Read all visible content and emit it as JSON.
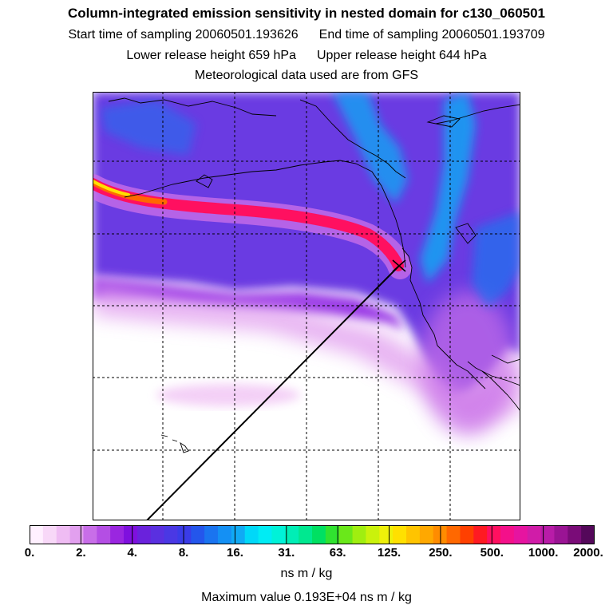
{
  "header": {
    "title": "Column-integrated emission sensitivity in nested domain for c130_060501",
    "start_label": "Start time of sampling 20060501.193626",
    "end_label": "End time of sampling 20060501.193709",
    "lower_label": "Lower release height  659 hPa",
    "upper_label": "Upper release height  644 hPa",
    "met_label": "Meteorological data used are from GFS"
  },
  "colorbar": {
    "tick_labels": [
      "0.",
      "2.",
      "4.",
      "8.",
      "16.",
      "31.",
      "63.",
      "125.",
      "250.",
      "500.",
      "1000.",
      "2000."
    ],
    "colors": [
      "#fff0ff",
      "#f8d8f8",
      "#efbcf3",
      "#e2a0ef",
      "#c86ee8",
      "#b44ee4",
      "#9a26e0",
      "#7f10de",
      "#6a22dc",
      "#5a30e0",
      "#4a38e4",
      "#3a3ce8",
      "#2456ec",
      "#1a74f0",
      "#1490f4",
      "#10aaf4",
      "#00d8f8",
      "#00ecf4",
      "#00f2d8",
      "#00eeb6",
      "#00e890",
      "#00e062",
      "#30e230",
      "#6ae81a",
      "#a0ee10",
      "#caf20c",
      "#eef00a",
      "#ffe000",
      "#ffc400",
      "#ffa800",
      "#ff8c00",
      "#ff6800",
      "#ff4000",
      "#ff1a22",
      "#ff1060",
      "#f4108a",
      "#e614a0",
      "#d01ca8",
      "#b81ca8",
      "#9a1494",
      "#7a0c78",
      "#54085a"
    ],
    "units": "ns m / kg"
  },
  "footer": {
    "max_value": "Maximum value  0.193E+04 ns m / kg"
  }
}
